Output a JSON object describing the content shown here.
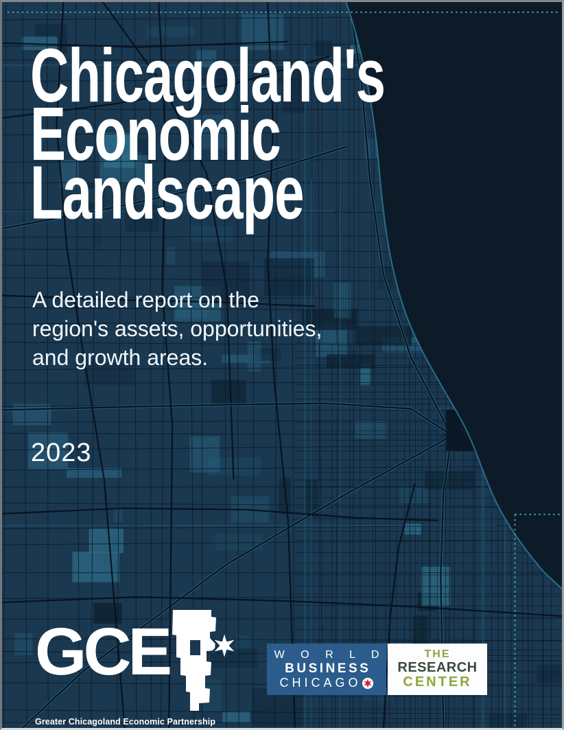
{
  "cover": {
    "title_lines": [
      "Chicagoland's",
      "Economic",
      "Landscape"
    ],
    "subtitle_lines": [
      "A detailed report on the",
      "region's assets, opportunities,",
      "and growth areas."
    ],
    "year": "2023"
  },
  "logos": {
    "gcep": {
      "acronym": "GCE",
      "p_graphic": "P",
      "tagline": "Greater Chicagoland Economic Partnership"
    },
    "world_business_chicago": {
      "lines": [
        "W O R L D",
        "BUSINESS",
        "CHICAGO"
      ]
    },
    "research_center": {
      "lines": [
        "THE",
        "RESEARCH",
        "CENTER"
      ]
    }
  },
  "colors": {
    "background_navy": "#1a3850",
    "lake": "#0c1b27",
    "accent_teal": "#2f7fa0",
    "dotted_line": "#4da6ba",
    "road_dark": "#06111d",
    "wbc_blue": "#2b5c8c",
    "star_red": "#d6242b",
    "olive": "#8aa83f",
    "research_dark": "#3a4a3f",
    "text_white": "#ffffff"
  }
}
